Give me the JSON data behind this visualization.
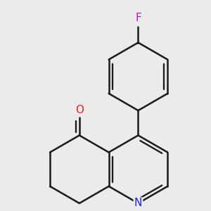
{
  "bg_color": "#ebebeb",
  "bond_color": "#1a1a1a",
  "N_color": "#2020e8",
  "O_color": "#e82020",
  "F_color": "#cc00cc",
  "line_width": 1.8,
  "dbo": 0.055,
  "fig_size": [
    3.0,
    3.0
  ],
  "dpi": 100,
  "xlim": [
    -1.5,
    1.5
  ],
  "ylim": [
    -1.6,
    1.6
  ]
}
